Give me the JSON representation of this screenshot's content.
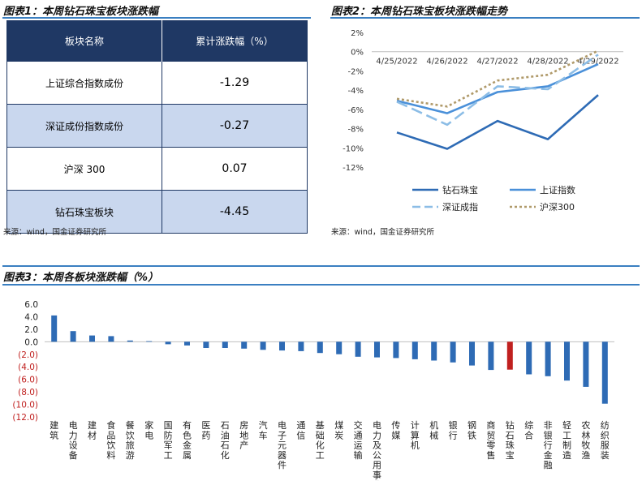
{
  "fig1": {
    "title": "图表1：本周钻石珠宝板块涨跌幅",
    "headers": [
      "板块名称",
      "累计涨跌幅（%）"
    ],
    "rows": [
      {
        "name": "上证综合指数成份",
        "value": "-1.29"
      },
      {
        "name": "深证成份指数成份",
        "value": "-0.27"
      },
      {
        "name": "沪深 300",
        "value": "0.07"
      },
      {
        "name": "钻石珠宝板块",
        "value": "-4.45"
      }
    ],
    "source": "来源：wind，国金证券研究所"
  },
  "fig2": {
    "title": "图表2：本周钻石珠宝板块涨跌幅走势",
    "source": "来源：wind，国金证券研究所"
  },
  "fig3": {
    "title": "图表3：本周各板块涨跌幅（%）"
  },
  "chart_data": [
    {
      "type": "line",
      "x": [
        "4/25/2022",
        "4/26/2022",
        "4/27/2022",
        "4/28/2022",
        "4/29/2022"
      ],
      "yticks": [
        "2%",
        "0%",
        "-2%",
        "-4%",
        "-6%",
        "-8%",
        "-10%",
        "-12%"
      ],
      "ylim": [
        -12,
        2
      ],
      "series": [
        {
          "name": "钻石珠宝",
          "values": [
            -8.4,
            -10.1,
            -7.2,
            -9.1,
            -4.5
          ],
          "color": "#2e6bb5",
          "dash": "solid"
        },
        {
          "name": "上证指数",
          "values": [
            -5.1,
            -6.4,
            -4.2,
            -3.6,
            -1.3
          ],
          "color": "#4a90d9",
          "dash": "solid"
        },
        {
          "name": "深证成指",
          "values": [
            -5.2,
            -7.6,
            -3.6,
            -3.9,
            -0.3
          ],
          "color": "#8cbde6",
          "dash": "long-dash"
        },
        {
          "name": "沪深300",
          "values": [
            -4.9,
            -5.7,
            -3.0,
            -2.4,
            0.1
          ],
          "color": "#b09a6a",
          "dash": "dot"
        }
      ],
      "legend": "bottom"
    },
    {
      "type": "bar",
      "categories": [
        "建筑",
        "电力设备",
        "建材",
        "食品饮料",
        "餐饮旅游",
        "家电",
        "国防军工",
        "有色金属",
        "医药",
        "石油石化",
        "房地产",
        "汽车",
        "电子元器件",
        "通信",
        "基础化工",
        "煤炭",
        "交通运输",
        "电力及公用事业",
        "传媒",
        "计算机",
        "机械",
        "银行",
        "钢铁",
        "商贸零售",
        "钻石珠宝",
        "综合",
        "非银行金融",
        "轻工制造",
        "农林牧渔",
        "纺织服装"
      ],
      "values": [
        4.2,
        1.7,
        1.0,
        0.9,
        0.2,
        0.1,
        -0.4,
        -0.6,
        -1.0,
        -1.0,
        -1.1,
        -1.3,
        -1.4,
        -1.5,
        -1.8,
        -2.0,
        -2.4,
        -2.5,
        -2.6,
        -2.8,
        -3.0,
        -3.3,
        -3.8,
        -4.5,
        -4.45,
        -5.2,
        -5.5,
        -6.2,
        -7.2,
        -9.9
      ],
      "highlight_index": 24,
      "color": "#2e6bb5",
      "highlight_color": "#c0201f",
      "yticks": [
        "6.0",
        "4.0",
        "2.0",
        "0.0",
        "(2.0)",
        "(4.0)",
        "(6.0)",
        "(8.0)",
        "(10.0)",
        "(12.0)"
      ],
      "ylim": [
        -12,
        6
      ]
    }
  ]
}
